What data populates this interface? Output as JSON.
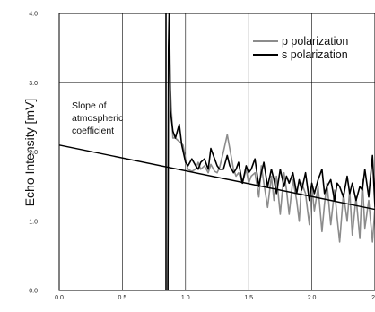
{
  "chart_data": {
    "type": "line",
    "title": "",
    "xlabel": "",
    "ylabel": "Echo Intensity [mV]",
    "xlim": [
      0,
      2.5
    ],
    "ylim": [
      0,
      4
    ],
    "x_ticks": [
      "0.0",
      "0.5",
      "1.0",
      "1.5",
      "2.0",
      "2"
    ],
    "y_ticks": [
      "0.0",
      "1.0",
      "2.0",
      "3.0",
      "4.0"
    ],
    "grid": true,
    "legend_position": "top-right",
    "series": [
      {
        "name": "p polarization",
        "color": "#8c8c8c",
        "x": [
          0.86,
          0.865,
          0.87,
          0.88,
          0.9,
          0.92,
          0.95,
          0.98,
          1.0,
          1.02,
          1.05,
          1.08,
          1.1,
          1.12,
          1.15,
          1.18,
          1.2,
          1.23,
          1.25,
          1.27,
          1.3,
          1.33,
          1.35,
          1.38,
          1.4,
          1.42,
          1.45,
          1.48,
          1.5,
          1.52,
          1.55,
          1.58,
          1.6,
          1.62,
          1.65,
          1.68,
          1.7,
          1.72,
          1.75,
          1.78,
          1.8,
          1.82,
          1.85,
          1.88,
          1.9,
          1.92,
          1.95,
          1.98,
          2.0,
          2.02,
          2.05,
          2.08,
          2.1,
          2.12,
          2.15,
          2.18,
          2.2,
          2.22,
          2.25,
          2.28,
          2.3,
          2.32,
          2.35,
          2.38,
          2.4,
          2.42,
          2.45,
          2.48,
          2.5
        ],
        "values": [
          0.0,
          3.4,
          3.7,
          2.9,
          2.2,
          2.2,
          2.15,
          2.1,
          1.9,
          1.75,
          1.72,
          1.75,
          1.85,
          1.75,
          1.8,
          1.7,
          1.82,
          1.72,
          1.7,
          1.78,
          2.0,
          2.25,
          2.05,
          1.75,
          1.65,
          1.7,
          1.55,
          1.75,
          1.55,
          1.65,
          1.7,
          1.35,
          1.8,
          1.55,
          1.2,
          1.65,
          1.3,
          1.65,
          1.1,
          1.7,
          1.45,
          1.1,
          1.6,
          1.3,
          1.0,
          1.55,
          1.4,
          0.95,
          1.5,
          1.15,
          1.5,
          0.85,
          1.25,
          1.55,
          0.95,
          1.45,
          1.05,
          0.7,
          1.4,
          1.0,
          1.45,
          0.8,
          1.35,
          0.75,
          1.6,
          0.9,
          1.3,
          0.7,
          1.2
        ]
      },
      {
        "name": "s polarization",
        "color": "#000000",
        "x": [
          0.86,
          0.865,
          0.87,
          0.875,
          0.88,
          0.9,
          0.92,
          0.95,
          0.97,
          1.0,
          1.02,
          1.05,
          1.08,
          1.1,
          1.12,
          1.15,
          1.18,
          1.2,
          1.23,
          1.25,
          1.27,
          1.3,
          1.33,
          1.35,
          1.38,
          1.4,
          1.42,
          1.45,
          1.48,
          1.5,
          1.52,
          1.55,
          1.58,
          1.6,
          1.62,
          1.65,
          1.68,
          1.7,
          1.72,
          1.75,
          1.78,
          1.8,
          1.82,
          1.85,
          1.88,
          1.9,
          1.92,
          1.95,
          1.98,
          2.0,
          2.02,
          2.05,
          2.08,
          2.1,
          2.12,
          2.15,
          2.18,
          2.2,
          2.22,
          2.25,
          2.28,
          2.3,
          2.32,
          2.35,
          2.38,
          2.4,
          2.42,
          2.45,
          2.48,
          2.5
        ],
        "values": [
          0.0,
          3.5,
          4.0,
          3.5,
          2.6,
          2.3,
          2.2,
          2.4,
          2.1,
          1.85,
          1.8,
          1.9,
          1.8,
          1.75,
          1.85,
          1.9,
          1.75,
          2.05,
          1.9,
          1.8,
          1.75,
          1.75,
          1.95,
          1.8,
          1.7,
          1.75,
          1.85,
          1.55,
          1.8,
          1.7,
          1.75,
          1.9,
          1.5,
          1.7,
          1.85,
          1.5,
          1.75,
          1.6,
          1.4,
          1.75,
          1.5,
          1.65,
          1.55,
          1.7,
          1.4,
          1.6,
          1.45,
          1.7,
          1.3,
          1.55,
          1.4,
          1.6,
          1.75,
          1.4,
          1.5,
          1.6,
          1.3,
          1.55,
          1.5,
          1.35,
          1.65,
          1.4,
          1.55,
          1.3,
          1.5,
          1.45,
          1.75,
          1.35,
          1.95,
          1.2
        ]
      },
      {
        "name": "",
        "color": "#000000",
        "x": [
          0.0,
          2.5
        ],
        "values": [
          2.1,
          1.17
        ]
      }
    ],
    "annotations": [
      {
        "text": [
          "Slope of",
          "atmospheric",
          "coefficient"
        ],
        "x": 0.1,
        "y": 3.15
      }
    ]
  }
}
